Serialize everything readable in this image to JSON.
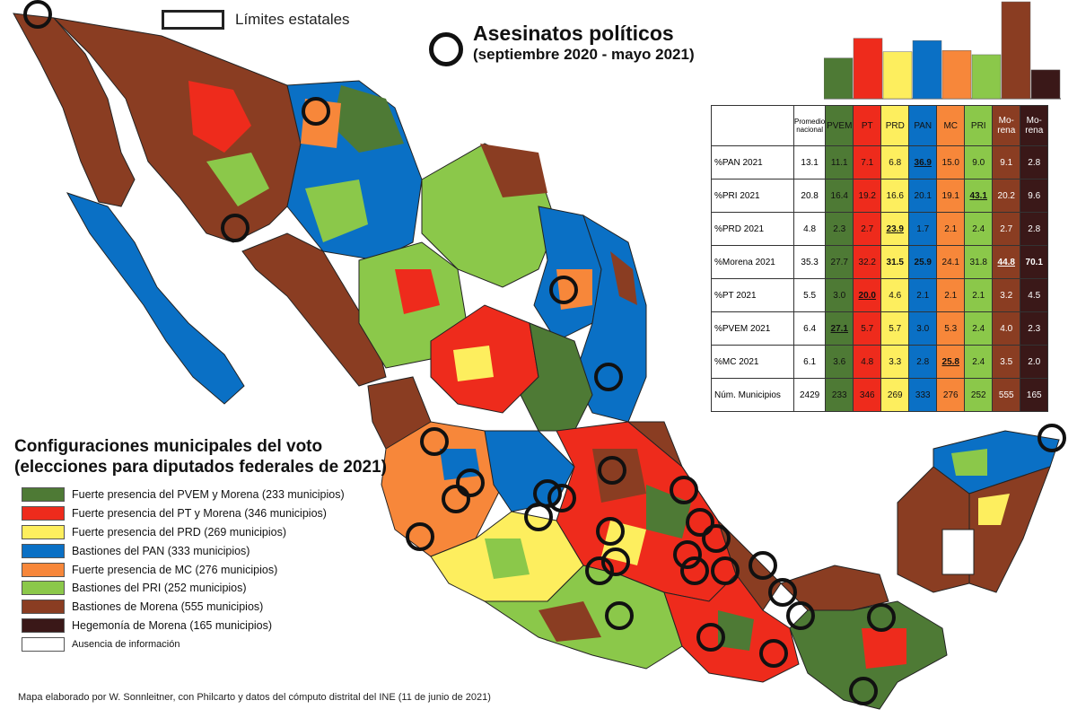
{
  "state_limits_label": "Límites estatales",
  "assassinations": {
    "title": "Asesinatos políticos",
    "subtitle": "(septiembre 2020 - mayo 2021)"
  },
  "legend": {
    "title_line1": "Configuraciones municipales del voto",
    "title_line2": "(elecciones para diputados federales de 2021)",
    "items": [
      {
        "label": "Fuerte presencia del PVEM y Morena (233 municipios)",
        "color": "#4e7a35"
      },
      {
        "label": "Fuerte presencia del PT y Morena (346 municipios)",
        "color": "#ee2b1c"
      },
      {
        "label": "Fuerte presencia del PRD (269 municipios)",
        "color": "#fdee5e"
      },
      {
        "label": "Bastiones del PAN (333 municipios)",
        "color": "#0a70c5"
      },
      {
        "label": "Fuerte presencia de MC (276 municipios)",
        "color": "#f7873a"
      },
      {
        "label": "Bastiones del PRI (252 municipios)",
        "color": "#8bc84a"
      },
      {
        "label": "Bastiones de Morena (555 municipios)",
        "color": "#8a3d22"
      },
      {
        "label": "Hegemonía de Morena (165 municipios)",
        "color": "#3a1818"
      },
      {
        "label": "Ausencia de información",
        "color": "#ffffff"
      }
    ]
  },
  "table": {
    "header_national": "Promedio nacional",
    "columns": [
      {
        "label": "PVEM",
        "color": "#4e7a35"
      },
      {
        "label": "PT",
        "color": "#ee2b1c"
      },
      {
        "label": "PRD",
        "color": "#fdee5e"
      },
      {
        "label": "PAN",
        "color": "#0a70c5"
      },
      {
        "label": "MC",
        "color": "#f7873a"
      },
      {
        "label": "PRI",
        "color": "#8bc84a"
      },
      {
        "label": "Mo-rena",
        "color": "#8a3d22"
      },
      {
        "label": "Mo-rena",
        "color": "#3a1818"
      }
    ],
    "rows": [
      {
        "label": "%PAN 2021",
        "national": "13.1",
        "values": [
          "11.1",
          "7.1",
          "6.8",
          "36.9",
          "15.0",
          "9.0",
          "9.1",
          "2.8"
        ],
        "highlight": 3
      },
      {
        "label": "%PRI 2021",
        "national": "20.8",
        "values": [
          "16.4",
          "19.2",
          "16.6",
          "20.1",
          "19.1",
          "43.1",
          "20.2",
          "9.6"
        ],
        "highlight": 5
      },
      {
        "label": "%PRD 2021",
        "national": "4.8",
        "values": [
          "2.3",
          "2.7",
          "23.9",
          "1.7",
          "2.1",
          "2.4",
          "2.7",
          "2.8"
        ],
        "highlight": 2
      },
      {
        "label": "%Morena 2021",
        "national": "35.3",
        "values": [
          "27.7",
          "32.2",
          "31.5",
          "25.9",
          "24.1",
          "31.8",
          "44.8",
          "70.1"
        ],
        "highlight": 6
      },
      {
        "label": "%PT 2021",
        "national": "5.5",
        "values": [
          "3.0",
          "20.0",
          "4.6",
          "2.1",
          "2.1",
          "2.1",
          "3.2",
          "4.5"
        ],
        "highlight": 1
      },
      {
        "label": "%PVEM 2021",
        "national": "6.4",
        "values": [
          "27.1",
          "5.7",
          "5.7",
          "3.0",
          "5.3",
          "2.4",
          "4.0",
          "2.3"
        ],
        "highlight": 0
      },
      {
        "label": "%MC 2021",
        "national": "6.1",
        "values": [
          "3.6",
          "4.8",
          "3.3",
          "2.8",
          "25.8",
          "2.4",
          "3.5",
          "2.0"
        ],
        "highlight": 4
      },
      {
        "label": "Núm. Municipios",
        "national": "2429",
        "values": [
          "233",
          "346",
          "269",
          "333",
          "276",
          "252",
          "555",
          "165"
        ],
        "highlight": -1
      }
    ]
  },
  "chart_data": {
    "type": "bar",
    "categories": [
      "PVEM y Morena",
      "PT y Morena",
      "PRD",
      "PAN",
      "MC",
      "PRI",
      "Bastiones de Morena",
      "Hegemonía de Morena"
    ],
    "values": [
      233,
      346,
      269,
      333,
      276,
      252,
      555,
      165
    ],
    "colors": [
      "#4e7a35",
      "#ee2b1c",
      "#fdee5e",
      "#0a70c5",
      "#f7873a",
      "#8bc84a",
      "#8a3d22",
      "#3a1818"
    ],
    "title": "",
    "ylim": [
      0,
      555
    ]
  },
  "source_note": "Mapa elaborado por W. Sonnleitner, con Philcarto y datos del cómputo distrital del INE (11 de junio de 2021)"
}
